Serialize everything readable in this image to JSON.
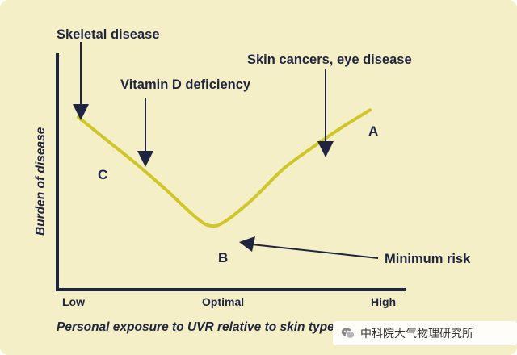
{
  "chart_data": {
    "type": "line",
    "xlabel": "Personal exposure to UVR relative to skin type",
    "ylabel": "Burden of disease",
    "x_ticks": [
      "Low",
      "Optimal",
      "High"
    ],
    "xlim": [
      0,
      1
    ],
    "ylim": [
      0,
      1
    ],
    "grid": false,
    "series": [
      {
        "x": [
          0.0,
          0.1,
          0.2,
          0.3,
          0.4,
          0.45,
          0.5,
          0.6,
          0.7,
          0.8,
          0.9,
          1.0
        ],
        "y": [
          0.78,
          0.65,
          0.52,
          0.38,
          0.23,
          0.18,
          0.2,
          0.33,
          0.49,
          0.61,
          0.72,
          0.82
        ]
      }
    ],
    "point_labels": [
      {
        "text": "A",
        "x": 1.0,
        "y": 0.82
      },
      {
        "text": "B",
        "x": 0.46,
        "y": 0.1
      },
      {
        "text": "C",
        "x": 0.07,
        "y": 0.53
      }
    ],
    "annotations": [
      {
        "text": "Skeletal disease",
        "x": 0.0,
        "y": 0.78
      },
      {
        "text": "Vitamin D deficiency",
        "x": 0.21,
        "y": 0.5
      },
      {
        "text": "Skin cancers, eye disease",
        "x": 0.84,
        "y": 0.65
      },
      {
        "text": "Minimum risk",
        "x": 0.46,
        "y": 0.18
      }
    ]
  },
  "colors": {
    "background": "#f4efc6",
    "curve": "#cfc72a",
    "text": "#1f2440",
    "axis": "#1f2440"
  },
  "watermark": {
    "text": "中科院大气物理研究所",
    "icon": "wechat-logo"
  }
}
